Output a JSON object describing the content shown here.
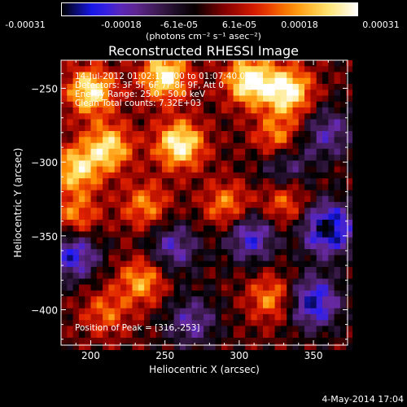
{
  "chart_data": {
    "type": "heatmap",
    "title": "Reconstructed RHESSI Image",
    "xlabel": "Heliocentric X (arcsec)",
    "ylabel": "Heliocentric Y (arcsec)",
    "xlim": [
      180,
      373
    ],
    "ylim": [
      -424,
      -231
    ],
    "x_ticks": [
      200,
      250,
      300,
      350
    ],
    "y_ticks": [
      -250,
      -300,
      -350,
      -400
    ],
    "colorbar": {
      "ticks": [
        "-0.00031",
        "-0.00018",
        "-6.1e-05",
        "6.1e-05",
        "0.00018",
        "0.00031"
      ],
      "tick_values": [
        -0.00031,
        -0.00018,
        -6.1e-05,
        6.1e-05,
        0.00018,
        0.00031
      ],
      "range": [
        -0.00031,
        0.00031
      ],
      "units": "(photons cm⁻² s⁻¹ asec⁻²)",
      "colormap": [
        "#000000",
        "#1a1aff",
        "#6a2aa8",
        "#3a1a4a",
        "#000000",
        "#8a0000",
        "#e02000",
        "#ff8a00",
        "#ffe060",
        "#ffffff"
      ]
    },
    "annotations": [
      "14-Jul-2012 01:02:12.000 to 01:07:40.000",
      "Detectors: 3F 5F 6F 7F 8F 9F, Att 0",
      "Energy Range: 25.0 - 50.0 keV",
      "Clean     Total counts: 7.32E+03"
    ],
    "peak_label": "Position of Peak = [316,-253]",
    "peak": [
      316,
      -253
    ],
    "bright_sources": [
      {
        "x": 200,
        "y": -252,
        "value": 0.00028
      },
      {
        "x": 250,
        "y": -242,
        "value": 0.00029
      },
      {
        "x": 307,
        "y": -245,
        "value": 0.00031
      },
      {
        "x": 333,
        "y": -252,
        "value": 0.0003
      },
      {
        "x": 212,
        "y": -290,
        "value": 0.00025
      },
      {
        "x": 260,
        "y": -288,
        "value": 0.0003
      },
      {
        "x": 326,
        "y": -285,
        "value": 0.00022
      },
      {
        "x": 190,
        "y": -305,
        "value": 0.00024
      },
      {
        "x": 190,
        "y": -338,
        "value": 0.00018
      },
      {
        "x": 237,
        "y": -330,
        "value": 0.00017
      },
      {
        "x": 292,
        "y": -330,
        "value": 0.00018
      },
      {
        "x": 330,
        "y": -328,
        "value": 0.00016
      },
      {
        "x": 235,
        "y": -380,
        "value": 0.0002
      },
      {
        "x": 322,
        "y": -392,
        "value": 0.00018
      },
      {
        "x": 210,
        "y": -402,
        "value": 0.00014
      }
    ],
    "dark_sources": [
      {
        "x": 188,
        "y": -362,
        "value": -0.00024
      },
      {
        "x": 255,
        "y": -358,
        "value": -0.00018
      },
      {
        "x": 308,
        "y": -350,
        "value": -0.00022
      },
      {
        "x": 360,
        "y": -345,
        "value": -0.00031
      },
      {
        "x": 350,
        "y": -395,
        "value": -0.00026
      },
      {
        "x": 268,
        "y": -408,
        "value": -0.00016
      },
      {
        "x": 330,
        "y": -300,
        "value": -0.00018
      },
      {
        "x": 360,
        "y": -280,
        "value": -0.00016
      }
    ]
  },
  "footer": "4-May-2014 17:04"
}
